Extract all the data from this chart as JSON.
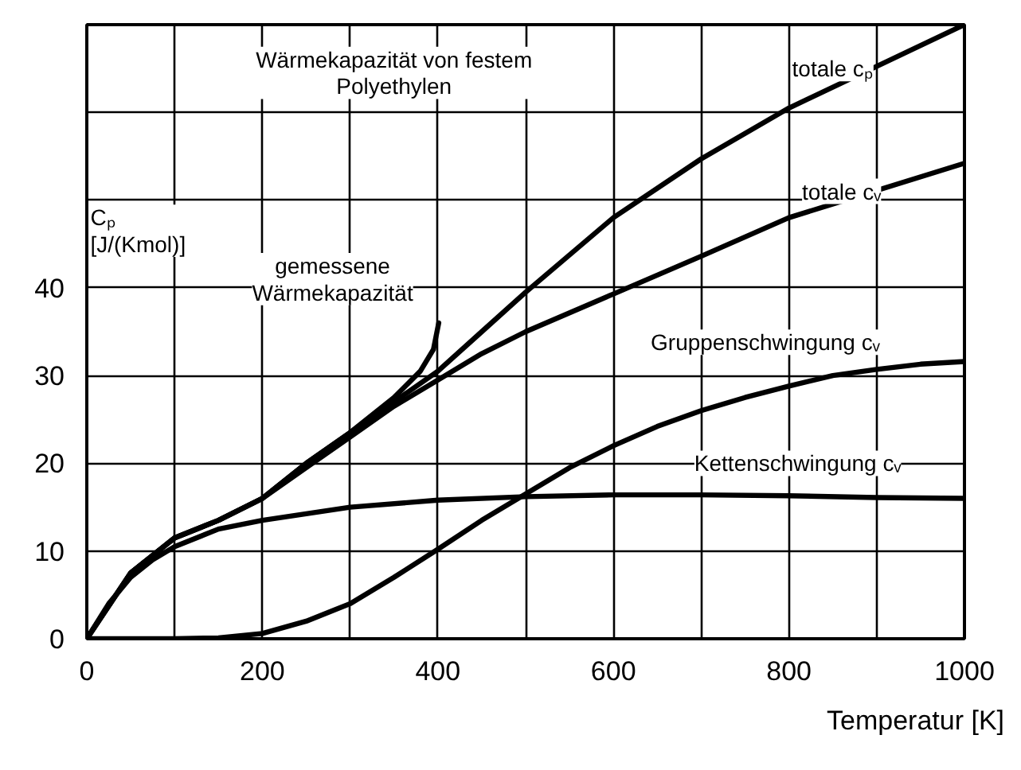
{
  "chart_data": {
    "type": "line",
    "title": "Wärmekapazität von festem\nPolyethylen",
    "xlabel": "Temperatur [K]",
    "ylabel": "Cₚ\n[J/(Kmol)]",
    "xlim": [
      0,
      1000
    ],
    "ylim": [
      0,
      70
    ],
    "xticks": [
      0,
      {
        "value": 100,
        "label": null
      },
      200,
      {
        "value": 300,
        "label": null
      },
      400,
      {
        "value": 500,
        "label": null
      },
      600,
      {
        "value": 700,
        "label": null
      },
      800,
      {
        "value": 900,
        "label": null
      },
      1000
    ],
    "yticks": [
      0,
      10,
      20,
      30,
      40,
      {
        "value": 50,
        "label": null
      },
      {
        "value": 60,
        "label": null
      },
      {
        "value": 70,
        "label": null
      }
    ],
    "grid": true,
    "line_style": "solid",
    "marker": "none",
    "series": [
      {
        "name": "totale cₚ",
        "color": "#000000",
        "x": [
          0,
          50,
          100,
          150,
          200,
          250,
          300,
          350,
          400,
          450,
          500,
          600,
          700,
          800,
          1000
        ],
        "values": [
          0,
          7.5,
          11.5,
          13.5,
          16,
          20,
          23.5,
          27,
          30.5,
          35,
          39.5,
          48,
          54.7,
          60.5,
          70
        ]
      },
      {
        "name": "totale cᵥ",
        "color": "#000000",
        "x": [
          0,
          50,
          100,
          150,
          200,
          250,
          300,
          350,
          400,
          450,
          500,
          600,
          700,
          800,
          1000
        ],
        "values": [
          0,
          7.5,
          11.5,
          13.5,
          16,
          19.5,
          23,
          26.5,
          29.5,
          32.5,
          35,
          39.3,
          43.6,
          48,
          54.2
        ]
      },
      {
        "name": "Gruppenschwingung cᵥ",
        "color": "#000000",
        "x": [
          0,
          100,
          150,
          200,
          250,
          300,
          350,
          400,
          450,
          500,
          550,
          600,
          650,
          700,
          750,
          800,
          850,
          900,
          950,
          1000
        ],
        "values": [
          0,
          0,
          0.1,
          0.6,
          2,
          4,
          7,
          10.2,
          13.5,
          16.5,
          19.5,
          22,
          24.2,
          26,
          27.5,
          28.8,
          30,
          30.7,
          31.3,
          31.6
        ]
      },
      {
        "name": "Kettenschwingung cᵥ",
        "color": "#000000",
        "x": [
          0,
          25,
          50,
          75,
          100,
          150,
          200,
          300,
          400,
          500,
          600,
          700,
          800,
          900,
          1000
        ],
        "values": [
          0,
          4,
          7,
          9,
          10.5,
          12.5,
          13.5,
          15,
          15.8,
          16.2,
          16.4,
          16.4,
          16.3,
          16.1,
          16
        ]
      },
      {
        "name": "gemessene\nWärmekapazität",
        "color": "#000000",
        "x": [
          0,
          50,
          100,
          150,
          200,
          250,
          300,
          350,
          380,
          395,
          401
        ],
        "values": [
          0,
          7.5,
          11.5,
          13.5,
          16,
          20,
          23.5,
          27.5,
          30.5,
          33,
          36
        ]
      }
    ]
  }
}
